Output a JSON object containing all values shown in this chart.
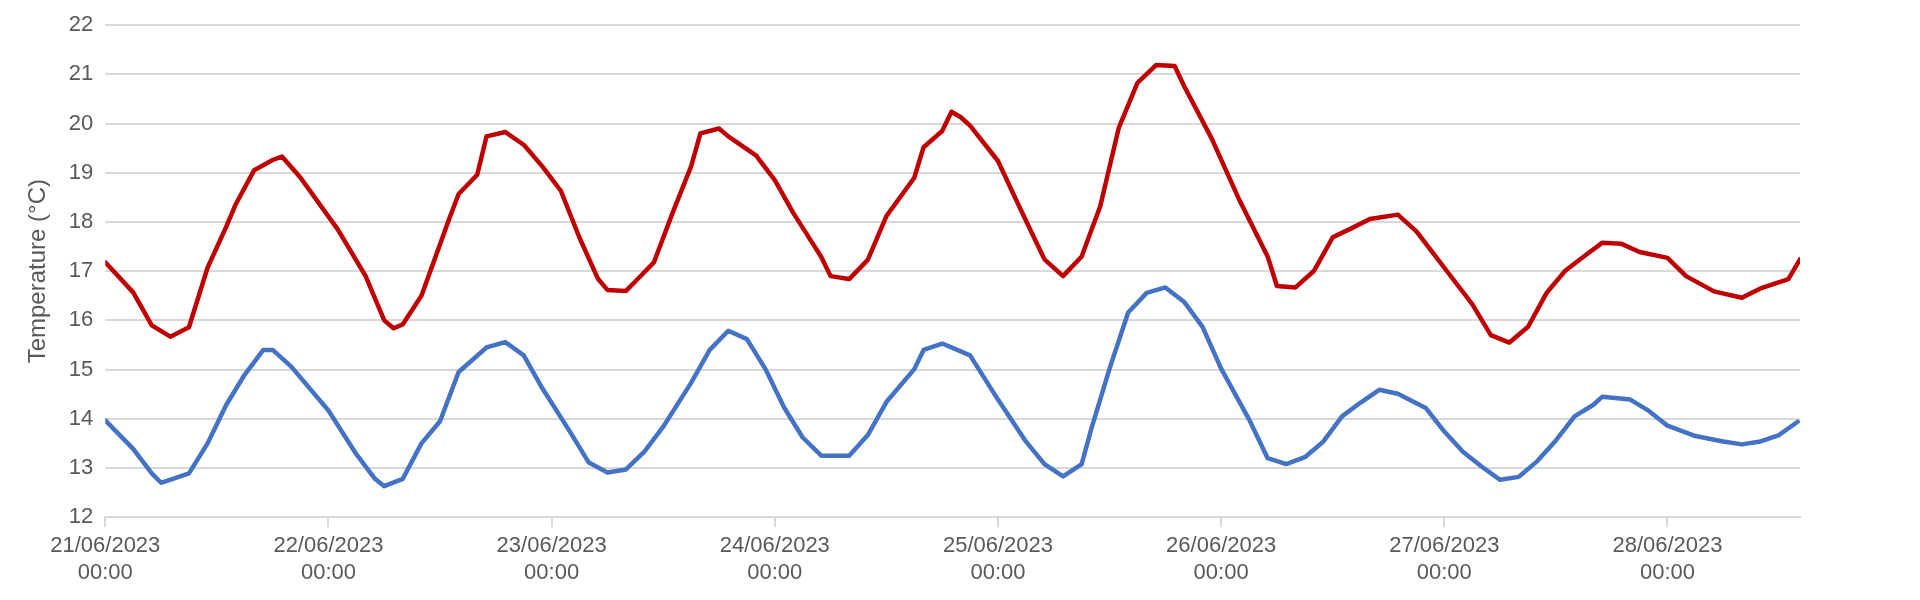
{
  "chart_data": {
    "type": "line",
    "ylabel": "Temperature (°C)",
    "ylim": [
      12,
      22
    ],
    "yticks": [
      12,
      13,
      14,
      15,
      16,
      17,
      18,
      19,
      20,
      21,
      22
    ],
    "xlim": [
      "2023-06-21T00:00",
      "2023-06-28T14:15"
    ],
    "xticks": [
      {
        "value": "2023-06-21T00:00",
        "label": "21/06/2023 00:00"
      },
      {
        "value": "2023-06-22T00:00",
        "label": "22/06/2023 00:00"
      },
      {
        "value": "2023-06-23T00:00",
        "label": "23/06/2023 00:00"
      },
      {
        "value": "2023-06-24T00:00",
        "label": "24/06/2023 00:00"
      },
      {
        "value": "2023-06-25T00:00",
        "label": "25/06/2023 00:00"
      },
      {
        "value": "2023-06-26T00:00",
        "label": "26/06/2023 00:00"
      },
      {
        "value": "2023-06-27T00:00",
        "label": "27/06/2023 00:00"
      },
      {
        "value": "2023-06-28T00:00",
        "label": "28/06/2023 00:00"
      }
    ],
    "grid": "y",
    "marker": "none",
    "line_style": "solid",
    "legend": false,
    "series": [
      {
        "color": "#c00000",
        "x": [
          "2023-06-21T00:00",
          "2023-06-21T03:00",
          "2023-06-21T05:00",
          "2023-06-21T07:00",
          "2023-06-21T09:00",
          "2023-06-21T11:00",
          "2023-06-21T13:00",
          "2023-06-21T14:00",
          "2023-06-21T16:00",
          "2023-06-21T18:00",
          "2023-06-21T19:00",
          "2023-06-21T21:00",
          "2023-06-22T01:00",
          "2023-06-22T04:00",
          "2023-06-22T06:00",
          "2023-06-22T07:00",
          "2023-06-22T08:00",
          "2023-06-22T10:00",
          "2023-06-22T13:00",
          "2023-06-22T14:00",
          "2023-06-22T16:00",
          "2023-06-22T17:00",
          "2023-06-22T19:00",
          "2023-06-22T21:00",
          "2023-06-22T23:00",
          "2023-06-23T01:00",
          "2023-06-23T03:00",
          "2023-06-23T05:00",
          "2023-06-23T06:00",
          "2023-06-23T08:00",
          "2023-06-23T09:00",
          "2023-06-23T11:00",
          "2023-06-23T13:00",
          "2023-06-23T15:00",
          "2023-06-23T16:00",
          "2023-06-23T18:00",
          "2023-06-23T19:00",
          "2023-06-23T22:00",
          "2023-06-24T00:00",
          "2023-06-24T02:00",
          "2023-06-24T05:00",
          "2023-06-24T06:00",
          "2023-06-24T08:00",
          "2023-06-24T10:00",
          "2023-06-24T12:00",
          "2023-06-24T15:00",
          "2023-06-24T16:00",
          "2023-06-24T18:00",
          "2023-06-24T19:00",
          "2023-06-24T20:00",
          "2023-06-24T21:00",
          "2023-06-25T00:00",
          "2023-06-25T02:00",
          "2023-06-25T05:00",
          "2023-06-25T07:00",
          "2023-06-25T09:00",
          "2023-06-25T11:00",
          "2023-06-25T13:00",
          "2023-06-25T15:00",
          "2023-06-25T17:00",
          "2023-06-25T19:00",
          "2023-06-25T20:00",
          "2023-06-25T23:00",
          "2023-06-26T02:00",
          "2023-06-26T05:00",
          "2023-06-26T06:00",
          "2023-06-26T08:00",
          "2023-06-26T10:00",
          "2023-06-26T12:00",
          "2023-06-26T14:00",
          "2023-06-26T16:00",
          "2023-06-26T19:00",
          "2023-06-26T21:00",
          "2023-06-27T00:00",
          "2023-06-27T03:00",
          "2023-06-27T05:00",
          "2023-06-27T07:00",
          "2023-06-27T09:00",
          "2023-06-27T11:00",
          "2023-06-27T13:00",
          "2023-06-27T15:00",
          "2023-06-27T17:00",
          "2023-06-27T19:00",
          "2023-06-27T21:00",
          "2023-06-28T00:00",
          "2023-06-28T02:00",
          "2023-06-28T05:00",
          "2023-06-28T08:00",
          "2023-06-28T10:00",
          "2023-06-28T13:00",
          "2023-06-28T14:15"
        ],
        "values": [
          17.18,
          16.57,
          15.9,
          15.67,
          15.86,
          17.07,
          17.9,
          18.35,
          19.05,
          19.26,
          19.33,
          18.9,
          17.85,
          16.9,
          16.0,
          15.84,
          15.92,
          16.5,
          18.07,
          18.57,
          18.96,
          19.74,
          19.83,
          19.57,
          19.13,
          18.63,
          17.68,
          16.84,
          16.62,
          16.6,
          16.79,
          17.18,
          18.18,
          19.13,
          19.8,
          19.9,
          19.74,
          19.35,
          18.85,
          18.18,
          17.29,
          16.9,
          16.84,
          17.23,
          18.12,
          18.9,
          19.52,
          19.85,
          20.24,
          20.13,
          19.96,
          19.24,
          18.43,
          17.24,
          16.9,
          17.3,
          18.32,
          19.92,
          20.83,
          21.19,
          21.17,
          20.77,
          19.69,
          18.43,
          17.3,
          16.7,
          16.67,
          17.01,
          17.69,
          17.87,
          18.06,
          18.15,
          17.81,
          17.07,
          16.33,
          15.7,
          15.55,
          15.87,
          16.56,
          17.01,
          17.3,
          17.58,
          17.56,
          17.39,
          17.27,
          16.9,
          16.59,
          16.46,
          16.65,
          16.84,
          17.24
        ]
      },
      {
        "color": "#4472c4",
        "x": [
          "2023-06-21T00:00",
          "2023-06-21T03:00",
          "2023-06-21T05:00",
          "2023-06-21T06:00",
          "2023-06-21T09:00",
          "2023-06-21T11:00",
          "2023-06-21T13:00",
          "2023-06-21T15:00",
          "2023-06-21T17:00",
          "2023-06-21T18:00",
          "2023-06-21T20:00",
          "2023-06-22T00:00",
          "2023-06-22T03:00",
          "2023-06-22T05:00",
          "2023-06-22T06:00",
          "2023-06-22T08:00",
          "2023-06-22T10:00",
          "2023-06-22T12:00",
          "2023-06-22T14:00",
          "2023-06-22T17:00",
          "2023-06-22T19:00",
          "2023-06-22T21:00",
          "2023-06-22T23:00",
          "2023-06-23T02:00",
          "2023-06-23T04:00",
          "2023-06-23T06:00",
          "2023-06-23T08:00",
          "2023-06-23T10:00",
          "2023-06-23T12:00",
          "2023-06-23T15:00",
          "2023-06-23T17:00",
          "2023-06-23T19:00",
          "2023-06-23T21:00",
          "2023-06-23T23:00",
          "2023-06-24T01:00",
          "2023-06-24T03:00",
          "2023-06-24T05:00",
          "2023-06-24T08:00",
          "2023-06-24T10:00",
          "2023-06-24T12:00",
          "2023-06-24T15:00",
          "2023-06-24T16:00",
          "2023-06-24T18:00",
          "2023-06-24T21:00",
          "2023-06-25T00:00",
          "2023-06-25T03:00",
          "2023-06-25T05:00",
          "2023-06-25T07:00",
          "2023-06-25T09:00",
          "2023-06-25T10:00",
          "2023-06-25T12:00",
          "2023-06-25T14:00",
          "2023-06-25T16:00",
          "2023-06-25T18:00",
          "2023-06-25T20:00",
          "2023-06-25T22:00",
          "2023-06-26T00:00",
          "2023-06-26T03:00",
          "2023-06-26T05:00",
          "2023-06-26T07:00",
          "2023-06-26T09:00",
          "2023-06-26T11:00",
          "2023-06-26T13:00",
          "2023-06-26T15:00",
          "2023-06-26T17:00",
          "2023-06-26T19:00",
          "2023-06-26T22:00",
          "2023-06-27T00:00",
          "2023-06-27T02:00",
          "2023-06-27T04:00",
          "2023-06-27T06:00",
          "2023-06-27T08:00",
          "2023-06-27T10:00",
          "2023-06-27T12:00",
          "2023-06-27T14:00",
          "2023-06-27T16:00",
          "2023-06-27T17:00",
          "2023-06-27T20:00",
          "2023-06-27T22:00",
          "2023-06-28T00:00",
          "2023-06-28T03:00",
          "2023-06-28T06:00",
          "2023-06-28T08:00",
          "2023-06-28T10:00",
          "2023-06-28T12:00",
          "2023-06-28T14:00"
        ],
        "values": [
          13.97,
          13.39,
          12.89,
          12.7,
          12.89,
          13.5,
          14.28,
          14.9,
          15.4,
          15.4,
          15.06,
          14.17,
          13.28,
          12.78,
          12.63,
          12.78,
          13.5,
          13.95,
          14.95,
          15.45,
          15.56,
          15.29,
          14.62,
          13.73,
          13.11,
          12.91,
          12.97,
          13.34,
          13.84,
          14.73,
          15.4,
          15.79,
          15.62,
          15.01,
          14.23,
          13.62,
          13.25,
          13.25,
          13.67,
          14.34,
          15.01,
          15.4,
          15.53,
          15.29,
          14.39,
          13.54,
          13.08,
          12.83,
          13.08,
          13.77,
          15.02,
          16.16,
          16.56,
          16.67,
          16.38,
          15.87,
          15.02,
          13.99,
          13.2,
          13.08,
          13.22,
          13.54,
          14.05,
          14.33,
          14.59,
          14.51,
          14.22,
          13.74,
          13.33,
          13.03,
          12.76,
          12.82,
          13.14,
          13.56,
          14.05,
          14.28,
          14.45,
          14.39,
          14.16,
          13.86,
          13.65,
          13.54,
          13.48,
          13.54,
          13.67,
          13.94
        ]
      }
    ]
  }
}
